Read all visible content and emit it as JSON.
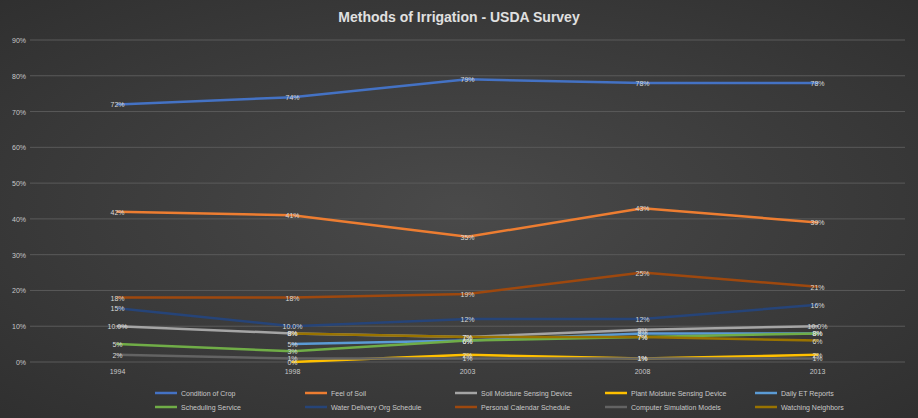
{
  "chart_data": {
    "type": "line",
    "title": "Methods of Irrigation - USDA Survey",
    "categories": [
      "1994",
      "1998",
      "2003",
      "2008",
      "2013"
    ],
    "ylim": [
      0,
      90
    ],
    "yticks": [
      {
        "value": 0,
        "label": "0%"
      },
      {
        "value": 10,
        "label": "10%"
      },
      {
        "value": 20,
        "label": "20%"
      },
      {
        "value": 30,
        "label": "30%"
      },
      {
        "value": 40,
        "label": "40%"
      },
      {
        "value": 50,
        "label": "50%"
      },
      {
        "value": 60,
        "label": "60%"
      },
      {
        "value": 70,
        "label": "70%"
      },
      {
        "value": 80,
        "label": "80%"
      },
      {
        "value": 90,
        "label": "90%"
      }
    ],
    "grid": true,
    "legend": "bottom",
    "data_labels": true,
    "series": [
      {
        "name": "Condition of Crop",
        "color": "#4472c4",
        "values": [
          72,
          74,
          79,
          78,
          78
        ],
        "value_labels": [
          "72%",
          "74%",
          "79%",
          "78%",
          "78%"
        ]
      },
      {
        "name": "Feel of Soil",
        "color": "#ed7d31",
        "values": [
          42,
          41,
          35,
          43,
          39
        ],
        "value_labels": [
          "42%",
          "41%",
          "35%",
          "43%",
          "39%"
        ]
      },
      {
        "name": "Soil Moisture Sensing Device",
        "color": "#a5a5a5",
        "values": [
          10,
          8,
          7,
          9,
          10
        ],
        "value_labels": [
          "10.0%",
          "8%",
          "7%",
          "9%",
          "10.0%"
        ]
      },
      {
        "name": "Plant Moisture Sensing Device",
        "color": "#ffc000",
        "values": [
          null,
          0,
          2,
          1,
          2
        ],
        "value_labels": [
          null,
          "0%",
          "2%",
          "1%",
          "2%"
        ]
      },
      {
        "name": "Daily ET Reports",
        "color": "#5b9bd5",
        "values": [
          null,
          5,
          6,
          8,
          8
        ],
        "value_labels": [
          null,
          "5%",
          "6%",
          "8%",
          "8%"
        ]
      },
      {
        "name": "Scheduling Service",
        "color": "#70ad47",
        "values": [
          5,
          3,
          6,
          7,
          8
        ],
        "value_labels": [
          "5%",
          "3%",
          "6%",
          "7%",
          "8%"
        ]
      },
      {
        "name": "Water Delivery Org Schedule",
        "color": "#264478",
        "values": [
          15,
          10,
          12,
          12,
          16
        ],
        "value_labels": [
          "15%",
          "10.0%",
          "12%",
          "12%",
          "16%"
        ]
      },
      {
        "name": "Personal Calendar Schedule",
        "color": "#9e480e",
        "values": [
          18,
          18,
          19,
          25,
          21
        ],
        "value_labels": [
          "18%",
          "18%",
          "19%",
          "25%",
          "21%"
        ]
      },
      {
        "name": "Computer Simulation Models",
        "color": "#636363",
        "values": [
          2,
          1,
          1,
          1,
          1
        ],
        "value_labels": [
          "2%",
          "1%",
          "1%",
          "1%",
          "1%"
        ]
      },
      {
        "name": "Watching Neighbors",
        "color": "#997300",
        "values": [
          null,
          8,
          7,
          7,
          6
        ],
        "value_labels": [
          null,
          "8%",
          "7%",
          "7%",
          "6%"
        ]
      }
    ]
  }
}
